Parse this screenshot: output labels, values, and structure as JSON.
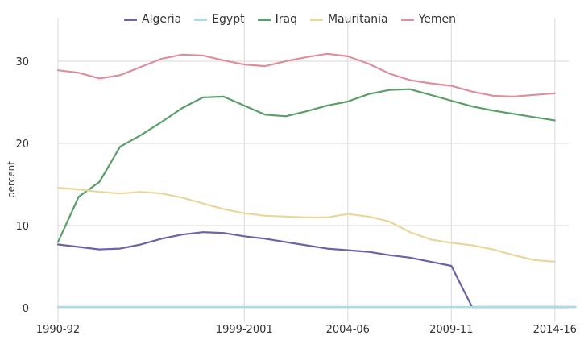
{
  "chart_data": {
    "type": "line",
    "title": "",
    "xlabel": "",
    "ylabel": "percent",
    "ylim": [
      0,
      32
    ],
    "yticks": [
      0,
      10,
      20,
      30
    ],
    "grid": true,
    "legend_position": "top",
    "x": [
      "1990-92",
      "1991-93",
      "1992-94",
      "1993-95",
      "1994-96",
      "1995-97",
      "1996-98",
      "1997-99",
      "1998-2000",
      "1999-2001",
      "2000-02",
      "2001-03",
      "2002-04",
      "2003-05",
      "2004-06",
      "2005-07",
      "2006-08",
      "2007-09",
      "2008-10",
      "2009-11",
      "2010-12",
      "2011-13",
      "2012-14",
      "2013-15",
      "2014-16",
      "2015-17"
    ],
    "xtick_labels": [
      "1990-92",
      "1999-2001",
      "2004-06",
      "2009-11",
      "2014-16"
    ],
    "xtick_indices": [
      0,
      9,
      14,
      19,
      24
    ],
    "series": [
      {
        "name": "Algeria",
        "color": "#6a63a8",
        "values": [
          7.7,
          7.4,
          7.1,
          7.2,
          7.7,
          8.4,
          8.9,
          9.2,
          9.1,
          8.7,
          8.4,
          8.0,
          7.6,
          7.2,
          7.0,
          6.8,
          6.4,
          6.1,
          5.6,
          5.1,
          0.1,
          0.1,
          0.1,
          0.1,
          0.1,
          0.1
        ]
      },
      {
        "name": "Egypt",
        "color": "#a8dce8",
        "values": [
          0.1,
          0.1,
          0.1,
          0.1,
          0.1,
          0.1,
          0.1,
          0.1,
          0.1,
          0.1,
          0.1,
          0.1,
          0.1,
          0.1,
          0.1,
          0.1,
          0.1,
          0.1,
          0.1,
          0.1,
          0.1,
          0.1,
          0.1,
          0.1,
          0.1,
          0.1
        ]
      },
      {
        "name": "Iraq",
        "color": "#5a9e6a",
        "values": [
          8.0,
          13.5,
          15.3,
          19.6,
          21.0,
          22.6,
          24.3,
          25.6,
          25.7,
          24.6,
          23.5,
          23.3,
          23.9,
          24.6,
          25.1,
          26.0,
          26.5,
          26.6,
          25.9,
          25.2,
          24.5,
          24.0,
          23.6,
          23.2,
          22.8,
          null
        ]
      },
      {
        "name": "Mauritania",
        "color": "#e8d79a",
        "values": [
          14.6,
          14.4,
          14.1,
          13.9,
          14.1,
          13.9,
          13.4,
          12.7,
          12.0,
          11.5,
          11.2,
          11.1,
          11.0,
          11.0,
          11.4,
          11.1,
          10.5,
          9.2,
          8.3,
          7.9,
          7.6,
          7.1,
          6.4,
          5.8,
          5.6,
          null
        ]
      },
      {
        "name": "Yemen",
        "color": "#dc8f9e",
        "values": [
          28.9,
          28.6,
          27.9,
          28.3,
          29.3,
          30.3,
          30.8,
          30.7,
          30.1,
          29.6,
          29.4,
          30.0,
          30.5,
          30.9,
          30.6,
          29.7,
          28.5,
          27.7,
          27.3,
          27.0,
          26.3,
          25.8,
          25.7,
          25.9,
          26.1,
          null
        ]
      }
    ]
  }
}
